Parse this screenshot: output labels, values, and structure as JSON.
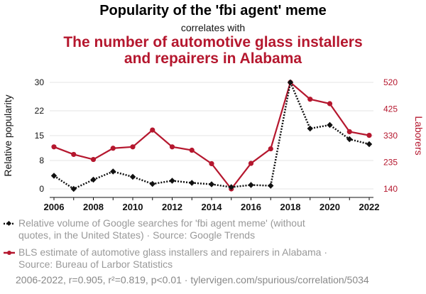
{
  "title": "Popularity of the 'fbi agent' meme",
  "subtitle": "correlates with",
  "title2_line1": "The number of automotive glass installers",
  "title2_line2": "and repairers in Alabama",
  "colors": {
    "series1": "#111111",
    "series2": "#b5172e",
    "grid": "#e6e6e6"
  },
  "legend": {
    "item1_line1": "Relative volume of Google searches for 'fbi agent meme' (without",
    "item1_line2": "quotes, in the United States) · Source: Google Trends",
    "item2_line1": "BLS estimate of automotive glass installers and repairers in Alabama ·",
    "item2_line2": "Source: Bureau of Larbor Statistics"
  },
  "footer": "2006-2022, r=0.905, r²=0.819, p<0.01 · tylervigen.com/spurious/correlation/5034",
  "chart_data": {
    "type": "line",
    "x": [
      2006,
      2007,
      2008,
      2009,
      2010,
      2011,
      2012,
      2013,
      2014,
      2015,
      2016,
      2017,
      2018,
      2019,
      2020,
      2021,
      2022
    ],
    "xticks": [
      2006,
      2008,
      2010,
      2012,
      2014,
      2016,
      2018,
      2020,
      2022
    ],
    "ylabel_left": "Relative popularity",
    "ylabel_right": "Laborers",
    "yticks_left": [
      0,
      8,
      15,
      22,
      30
    ],
    "yticks_right": [
      140,
      235,
      330,
      425,
      520
    ],
    "ylim_left": [
      0,
      30
    ],
    "ylim_right": [
      140,
      520
    ],
    "series": [
      {
        "axis": "left",
        "style": "dotted",
        "marker": "diamond",
        "values": [
          3.7,
          0,
          2.6,
          4.9,
          3.4,
          1.4,
          2.3,
          1.7,
          1.3,
          0.5,
          1.1,
          0.9,
          30,
          17,
          18,
          14,
          12.6
        ]
      },
      {
        "axis": "right",
        "style": "solid",
        "marker": "circle",
        "values": [
          290,
          263,
          245,
          285,
          290,
          350,
          290,
          278,
          230,
          140,
          231,
          283,
          520,
          460,
          444,
          344,
          331
        ]
      }
    ],
    "grid": true
  }
}
